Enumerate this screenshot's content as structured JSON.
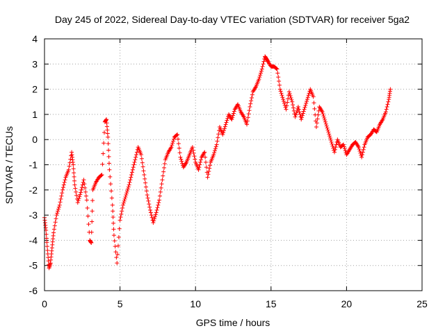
{
  "chart_data": {
    "type": "scatter",
    "title": "Day 245 of 2022, Sidereal Day-to-day VTEC variation (SDTVAR) for receiver 5ga2",
    "xlabel": "GPS time / hours",
    "ylabel": "SDTVAR / TECUs",
    "xlim": [
      0,
      25
    ],
    "ylim": [
      -6,
      4
    ],
    "xticks": [
      0,
      5,
      10,
      15,
      20,
      25
    ],
    "yticks": [
      -6,
      -5,
      -4,
      -3,
      -2,
      -1,
      0,
      1,
      2,
      3,
      4
    ],
    "xtick_labels": [
      "0",
      "5",
      "10",
      "15",
      "20",
      "25"
    ],
    "ytick_labels": [
      "-6",
      "-5",
      "-4",
      "-3",
      "-2",
      "-1",
      "0",
      "1",
      "2",
      "3",
      "4"
    ],
    "grid": true,
    "marker": "+",
    "color": "#ff0000",
    "series": [
      {
        "name": "SDTVAR",
        "x": [
          0.0,
          0.1,
          0.2,
          0.3,
          0.4,
          0.5,
          0.6,
          0.8,
          1.0,
          1.2,
          1.4,
          1.6,
          1.8,
          1.9,
          2.0,
          2.2,
          2.4,
          2.6,
          2.8,
          3.0,
          3.1,
          3.2,
          3.4,
          3.6,
          3.8,
          4.0,
          4.1,
          4.2,
          4.3,
          4.5,
          4.6,
          4.8,
          5.0,
          5.2,
          5.4,
          5.6,
          5.8,
          6.0,
          6.2,
          6.4,
          6.6,
          6.8,
          7.0,
          7.2,
          7.4,
          7.6,
          7.8,
          8.0,
          8.2,
          8.4,
          8.6,
          8.8,
          9.0,
          9.2,
          9.4,
          9.6,
          9.8,
          10.0,
          10.2,
          10.4,
          10.6,
          10.8,
          11.0,
          11.2,
          11.4,
          11.6,
          11.8,
          12.0,
          12.2,
          12.4,
          12.6,
          12.8,
          13.0,
          13.2,
          13.4,
          13.6,
          13.8,
          14.0,
          14.2,
          14.4,
          14.6,
          14.7,
          14.8,
          15.0,
          15.2,
          15.4,
          15.6,
          15.8,
          16.0,
          16.2,
          16.4,
          16.6,
          16.8,
          17.0,
          17.2,
          17.4,
          17.6,
          17.8,
          18.0,
          18.2,
          18.4,
          18.6,
          18.8,
          19.0,
          19.2,
          19.4,
          19.6,
          19.8,
          20.0,
          20.2,
          20.4,
          20.6,
          20.8,
          21.0,
          21.2,
          21.4,
          21.6,
          21.8,
          22.0,
          22.2,
          22.4,
          22.6,
          22.8,
          22.9
        ],
        "y": [
          -3.1,
          -3.6,
          -4.4,
          -5.1,
          -4.9,
          -4.3,
          -3.7,
          -3.0,
          -2.6,
          -2.0,
          -1.5,
          -1.2,
          -0.5,
          -1.0,
          -1.8,
          -2.5,
          -2.1,
          -1.6,
          -2.4,
          -4.0,
          -4.1,
          -2.0,
          -1.7,
          -1.5,
          -1.4,
          0.7,
          0.8,
          0.1,
          -1.2,
          -2.6,
          -3.8,
          -4.9,
          -3.2,
          -2.6,
          -2.2,
          -1.8,
          -1.3,
          -0.8,
          -0.3,
          -0.6,
          -1.4,
          -2.2,
          -2.8,
          -3.3,
          -2.9,
          -2.4,
          -1.6,
          -0.8,
          -0.5,
          -0.3,
          0.1,
          0.2,
          -0.7,
          -1.1,
          -0.9,
          -0.6,
          -0.3,
          -0.9,
          -1.2,
          -0.7,
          -0.5,
          -1.5,
          -0.9,
          -0.6,
          -0.2,
          0.5,
          0.2,
          0.6,
          1.0,
          0.8,
          1.2,
          1.4,
          1.1,
          0.9,
          0.6,
          1.3,
          1.9,
          2.1,
          2.4,
          2.8,
          3.3,
          3.2,
          3.1,
          2.9,
          2.9,
          2.8,
          2.0,
          1.6,
          1.2,
          1.9,
          1.5,
          0.9,
          1.3,
          0.8,
          1.2,
          1.6,
          2.0,
          1.7,
          0.5,
          1.3,
          1.1,
          0.7,
          0.3,
          -0.1,
          -0.5,
          0.0,
          -0.3,
          -0.2,
          -0.6,
          -0.4,
          -0.2,
          -0.1,
          -0.3,
          -0.7,
          -0.2,
          0.1,
          0.2,
          0.4,
          0.3,
          0.6,
          0.8,
          1.1,
          1.6,
          2.0
        ]
      }
    ]
  }
}
